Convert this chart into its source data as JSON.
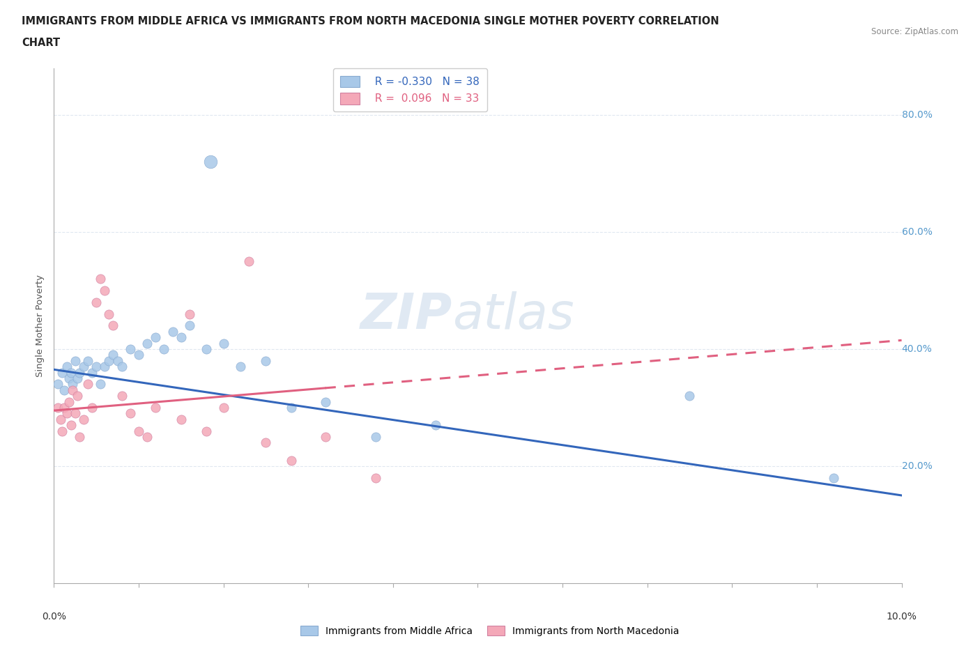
{
  "title_line1": "IMMIGRANTS FROM MIDDLE AFRICA VS IMMIGRANTS FROM NORTH MACEDONIA SINGLE MOTHER POVERTY CORRELATION",
  "title_line2": "CHART",
  "source": "Source: ZipAtlas.com",
  "ylabel": "Single Mother Poverty",
  "legend_label1": "Immigrants from Middle Africa",
  "legend_label2": "Immigrants from North Macedonia",
  "R1": -0.33,
  "N1": 38,
  "R2": 0.096,
  "N2": 33,
  "color1": "#a8c8e8",
  "color2": "#f4a8b8",
  "trendline1_color": "#3366bb",
  "trendline2_color": "#e06080",
  "watermark_ZIP": "ZIP",
  "watermark_atlas": "atlas",
  "blue_points_x": [
    0.05,
    0.1,
    0.12,
    0.15,
    0.18,
    0.2,
    0.22,
    0.25,
    0.28,
    0.3,
    0.35,
    0.4,
    0.45,
    0.5,
    0.55,
    0.6,
    0.65,
    0.7,
    0.75,
    0.8,
    0.9,
    1.0,
    1.1,
    1.2,
    1.3,
    1.4,
    1.5,
    1.6,
    1.8,
    2.0,
    2.2,
    2.5,
    2.8,
    3.2,
    3.8,
    4.5,
    7.5,
    9.2
  ],
  "blue_points_y": [
    34,
    36,
    33,
    37,
    35,
    36,
    34,
    38,
    35,
    36,
    37,
    38,
    36,
    37,
    34,
    37,
    38,
    39,
    38,
    37,
    40,
    39,
    41,
    42,
    40,
    43,
    42,
    44,
    40,
    41,
    37,
    38,
    30,
    31,
    25,
    27,
    32,
    18
  ],
  "blue_outlier_x": 1.85,
  "blue_outlier_y": 72,
  "blue_outlier_size": 180,
  "pink_points_x": [
    0.05,
    0.08,
    0.1,
    0.12,
    0.15,
    0.18,
    0.2,
    0.22,
    0.25,
    0.28,
    0.3,
    0.35,
    0.4,
    0.45,
    0.5,
    0.55,
    0.6,
    0.65,
    0.7,
    0.8,
    0.9,
    1.0,
    1.1,
    1.2,
    1.5,
    1.8,
    2.0,
    2.5,
    2.8,
    3.2,
    3.8,
    2.3,
    1.6
  ],
  "pink_points_y": [
    30,
    28,
    26,
    30,
    29,
    31,
    27,
    33,
    29,
    32,
    25,
    28,
    34,
    30,
    48,
    52,
    50,
    46,
    44,
    32,
    29,
    26,
    25,
    30,
    28,
    26,
    30,
    24,
    21,
    25,
    18,
    55,
    46
  ],
  "trendline1_x0": 0.0,
  "trendline1_y0": 36.5,
  "trendline1_x1": 10.0,
  "trendline1_y1": 15.0,
  "trendline2_x0": 0.0,
  "trendline2_y0": 29.5,
  "trendline2_x1": 10.0,
  "trendline2_y1": 41.5,
  "trendline2_solid_end": 3.2,
  "xlim": [
    0.0,
    10.0
  ],
  "ylim": [
    0.0,
    88.0
  ],
  "yticks": [
    20,
    40,
    60,
    80
  ],
  "ytick_labels": [
    "20.0%",
    "40.0%",
    "60.0%",
    "80.0%"
  ],
  "xtick_positions": [
    0,
    1,
    2,
    3,
    4,
    5,
    6,
    7,
    8,
    9,
    10
  ],
  "bg_color": "#ffffff",
  "grid_color": "#e0e8f0",
  "grid_style": "--"
}
